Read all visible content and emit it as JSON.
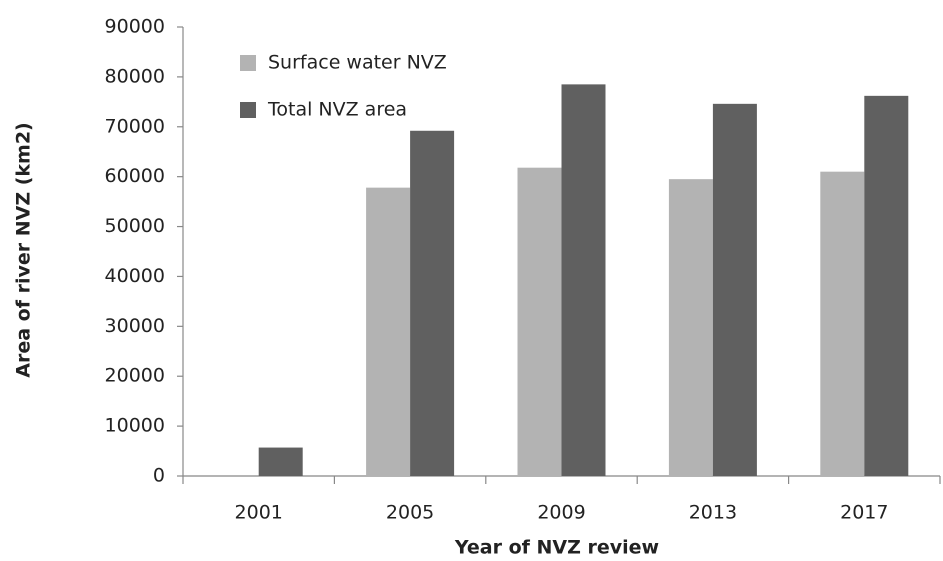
{
  "chart_data": {
    "type": "bar",
    "x_label": "Year of NVZ review",
    "y_label": "Area of river NVZ (km2)",
    "categories": [
      "2001",
      "2005",
      "2009",
      "2013",
      "2017"
    ],
    "series": [
      {
        "name": "Surface water NVZ",
        "color": "#b3b3b3",
        "values": [
          null,
          57800,
          61800,
          59500,
          61000
        ]
      },
      {
        "name": "Total NVZ area",
        "color": "#606060",
        "values": [
          5700,
          69200,
          78500,
          74600,
          76200
        ]
      }
    ],
    "ylim": [
      0,
      90000
    ],
    "yticks": [
      0,
      10000,
      20000,
      30000,
      40000,
      50000,
      60000,
      70000,
      80000,
      90000
    ],
    "grid": false,
    "legend": "upper left"
  }
}
